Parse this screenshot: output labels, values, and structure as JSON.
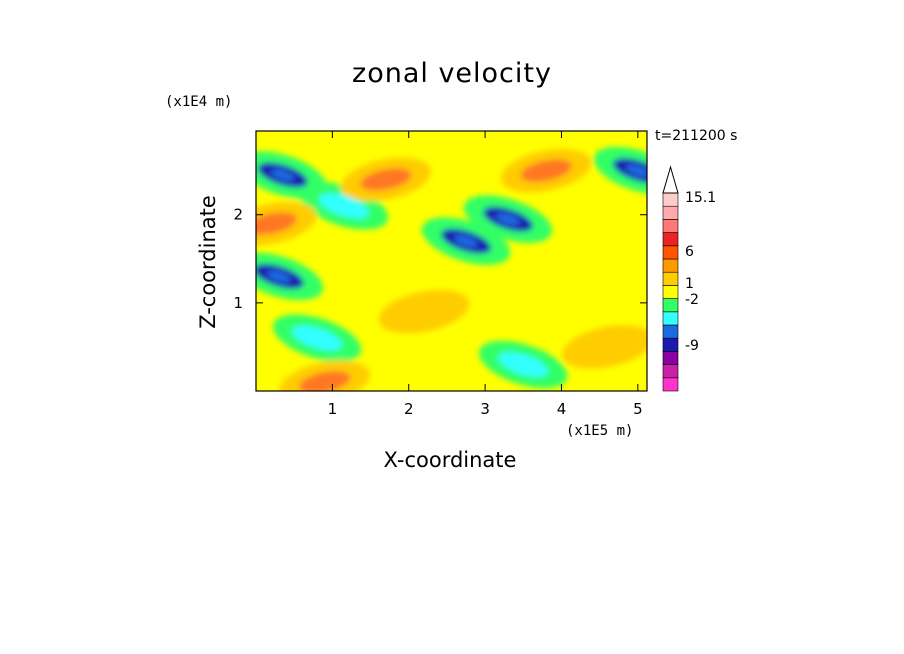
{
  "chart_data": {
    "type": "heatmap",
    "title": "zonal velocity",
    "timestamp": "t=211200 s",
    "xlabel": "X-coordinate",
    "ylabel": "Z-coordinate",
    "x_unit": "(x1E5 m)",
    "y_unit": "(x1E4 m)",
    "xlim": [
      0,
      5.12
    ],
    "ylim": [
      0,
      2.95
    ],
    "x_ticks": [
      "1",
      "2",
      "3",
      "4",
      "5"
    ],
    "y_ticks": [
      "1",
      "2"
    ],
    "colorbar": {
      "labels": [
        "15.1",
        "6",
        "1",
        "-2",
        "-9"
      ],
      "levels": [
        {
          "color": "#ff33cc"
        },
        {
          "color": "#cc1fa8"
        },
        {
          "color": "#8a00a0"
        },
        {
          "color": "#1a1ab0"
        },
        {
          "color": "#1c6ae0"
        },
        {
          "color": "#33ffff"
        },
        {
          "color": "#33ff66"
        },
        {
          "color": "#ffff00"
        },
        {
          "color": "#ffcc00"
        },
        {
          "color": "#ff9900"
        },
        {
          "color": "#ff5500"
        },
        {
          "color": "#ee2222"
        },
        {
          "color": "#ff7777"
        },
        {
          "color": "#ffaaaa"
        },
        {
          "color": "#ffcccc"
        }
      ]
    },
    "features": [
      {
        "x": 0.35,
        "z": 2.45,
        "value": -9
      },
      {
        "x": 1.15,
        "z": 2.1,
        "value": -2
      },
      {
        "x": 2.75,
        "z": 1.7,
        "value": -9
      },
      {
        "x": 3.3,
        "z": 1.95,
        "value": -9
      },
      {
        "x": 5.0,
        "z": 2.5,
        "value": -9
      },
      {
        "x": 0.3,
        "z": 1.3,
        "value": -9
      },
      {
        "x": 0.2,
        "z": 1.9,
        "value": 6
      },
      {
        "x": 3.8,
        "z": 2.5,
        "value": 6
      },
      {
        "x": 1.7,
        "z": 2.4,
        "value": 6
      },
      {
        "x": 0.8,
        "z": 0.6,
        "value": -2
      },
      {
        "x": 3.5,
        "z": 0.3,
        "value": -2
      },
      {
        "x": 4.6,
        "z": 0.5,
        "value": 1
      },
      {
        "x": 2.2,
        "z": 0.9,
        "value": 1
      },
      {
        "x": 0.9,
        "z": 0.1,
        "value": 6
      }
    ]
  }
}
